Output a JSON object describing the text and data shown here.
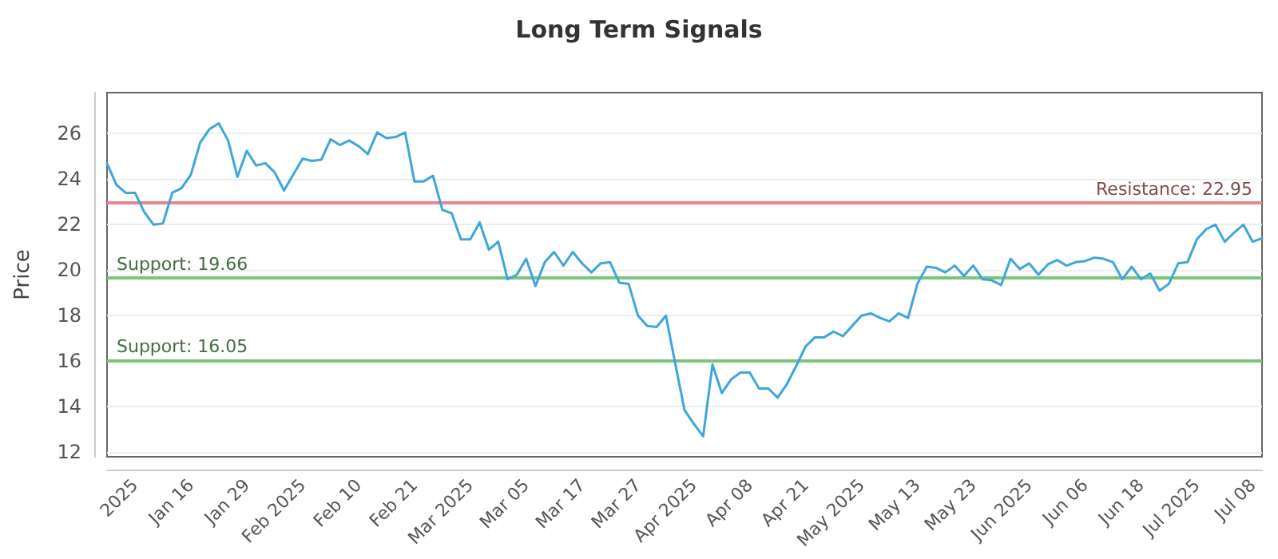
{
  "chart_data": {
    "type": "line",
    "title": "Long Term Signals",
    "ylabel": "Price",
    "categories": [
      null,
      null,
      null,
      "2025",
      null,
      null,
      null,
      null,
      null,
      "Jan 16",
      null,
      null,
      null,
      null,
      null,
      "Jan 29",
      null,
      null,
      null,
      null,
      null,
      "Feb 2025",
      null,
      null,
      null,
      null,
      null,
      "Feb 10",
      null,
      null,
      null,
      null,
      null,
      "Feb 21",
      null,
      null,
      null,
      null,
      null,
      "Mar 2025",
      null,
      null,
      null,
      null,
      null,
      "Mar 05",
      null,
      null,
      null,
      null,
      null,
      "Mar 17",
      null,
      null,
      null,
      null,
      null,
      "Mar 27",
      null,
      null,
      null,
      null,
      null,
      "Apr 2025",
      null,
      null,
      null,
      null,
      null,
      "Apr 08",
      null,
      null,
      null,
      null,
      null,
      "Apr 21",
      null,
      null,
      null,
      null,
      null,
      "May 2025",
      null,
      null,
      null,
      null,
      null,
      "May 13",
      null,
      null,
      null,
      null,
      null,
      "May 23",
      null,
      null,
      null,
      null,
      null,
      "Jun 2025",
      null,
      null,
      null,
      null,
      null,
      "Jun 06",
      null,
      null,
      null,
      null,
      null,
      "Jun 18",
      null,
      null,
      null,
      null,
      null,
      "Jul 2025",
      null,
      null,
      null,
      null,
      null,
      "Jul 08",
      null
    ],
    "series": [
      {
        "color": "#3ea6da",
        "values": [
          24.7,
          23.75,
          23.4,
          23.4,
          22.55,
          22.0,
          22.05,
          23.4,
          23.6,
          24.2,
          25.6,
          26.2,
          26.45,
          25.7,
          24.1,
          25.25,
          24.6,
          24.7,
          24.3,
          23.5,
          24.2,
          24.9,
          24.8,
          24.85,
          25.75,
          25.5,
          25.7,
          25.45,
          25.1,
          26.05,
          25.8,
          25.85,
          26.05,
          23.9,
          23.9,
          24.15,
          22.65,
          22.5,
          21.35,
          21.35,
          22.1,
          20.9,
          21.25,
          19.6,
          19.8,
          20.5,
          19.3,
          20.35,
          20.8,
          20.2,
          20.8,
          20.3,
          19.9,
          20.3,
          20.35,
          19.45,
          19.4,
          18.0,
          17.55,
          17.5,
          18.0,
          15.9,
          13.85,
          13.25,
          12.7,
          15.85,
          14.6,
          15.2,
          15.5,
          15.5,
          14.8,
          14.8,
          14.4,
          15.0,
          15.8,
          16.65,
          17.05,
          17.05,
          17.3,
          17.1,
          17.55,
          18.0,
          18.1,
          17.9,
          17.75,
          18.1,
          17.9,
          19.4,
          20.15,
          20.1,
          19.9,
          20.2,
          19.75,
          20.2,
          19.6,
          19.55,
          19.35,
          20.5,
          20.05,
          20.3,
          19.8,
          20.25,
          20.45,
          20.2,
          20.35,
          20.4,
          20.55,
          20.5,
          20.35,
          19.6,
          20.15,
          19.6,
          19.85,
          19.1,
          19.4,
          20.3,
          20.35,
          21.35,
          21.8,
          22.0,
          21.25,
          21.65,
          22.0,
          21.25,
          21.4
        ]
      }
    ],
    "ylim": [
      11.8,
      27.8
    ],
    "yticks": [
      12,
      14,
      16,
      18,
      20,
      22,
      24,
      26
    ],
    "grid": "y",
    "marker": "none",
    "line_style": "solid",
    "ref_lines": [
      {
        "axis": "y",
        "value": 22.95,
        "label": "Resistance: 22.95",
        "color": "#e8868e"
      },
      {
        "axis": "y",
        "value": 19.66,
        "label": "Support: 19.66",
        "color": "#7cc47c"
      },
      {
        "axis": "y",
        "value": 16.05,
        "label": "Support: 16.05",
        "color": "#7cc47c"
      }
    ]
  }
}
